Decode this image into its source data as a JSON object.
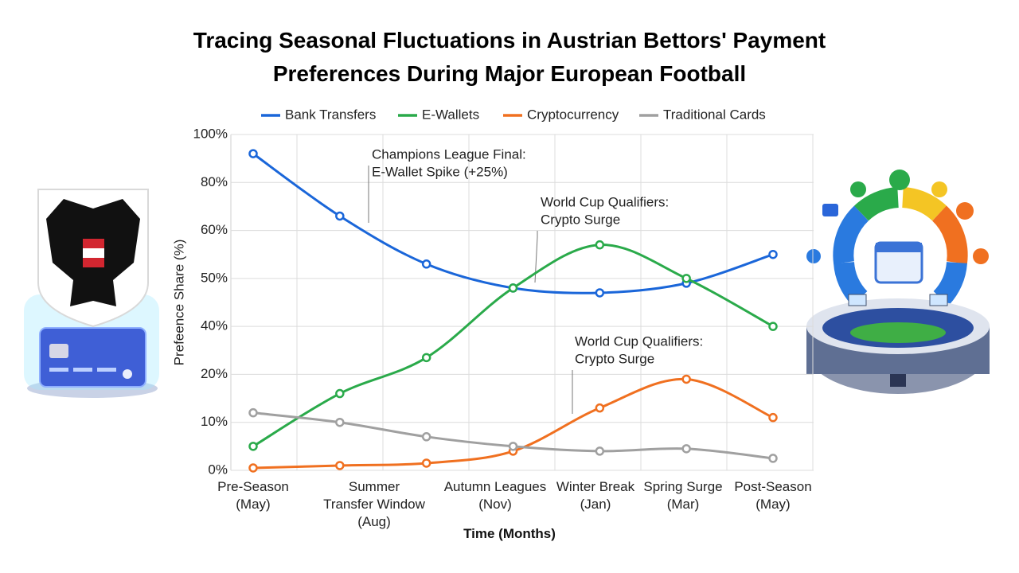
{
  "chart_data": {
    "type": "line",
    "title": "Tracing Seasonal Fluctuations in Austrian Bettors' Payment Preferences During Major European Football",
    "x_label": "Time (Months)",
    "y_label": "Prefeence Share (%)",
    "categories": [
      "Pre-Season (May)",
      "Summer Transfer Window (Aug)",
      null,
      "Autumn Leagues (Nov)",
      "Winter Break (Jan)",
      "Spring Surge (Mar)",
      "Post-Season (May)"
    ],
    "series": [
      {
        "name": "Bank Transfers",
        "color": "#1a66d9",
        "values": [
          92,
          66,
          53,
          48,
          47,
          49,
          55
        ]
      },
      {
        "name": "E-Wallets",
        "color": "#2aaa4a",
        "values": [
          5,
          16,
          27,
          48,
          57,
          50,
          40
        ]
      },
      {
        "name": "Cryptocurrency",
        "color": "#f07020",
        "values": [
          0.5,
          1,
          1.5,
          4,
          13,
          19,
          11
        ]
      },
      {
        "name": "Traditional Cards",
        "color": "#a0a0a0",
        "values": [
          12,
          10,
          7,
          5,
          4,
          4.5,
          2.5
        ]
      }
    ],
    "ylim": [
      0,
      100
    ],
    "yticks": [
      {
        "value": 0,
        "label": "0%"
      },
      {
        "value": 10,
        "label": "10%"
      },
      {
        "value": 20,
        "label": "20%"
      },
      {
        "value": 40,
        "label": "40%"
      },
      {
        "value": 50,
        "label": "50%"
      },
      {
        "value": 60,
        "label": "60%"
      },
      {
        "value": 80,
        "label": "80%"
      },
      {
        "value": 100,
        "label": "100%"
      }
    ],
    "grid": true,
    "legend": "top",
    "annotations": [
      {
        "lines": [
          "Champions League Final:",
          "E-Wallet Spike (+25%)"
        ]
      },
      {
        "lines": [
          "World Cup Qualifiers:",
          "Crypto Surge"
        ]
      },
      {
        "lines": [
          "World Cup Qualifiers:",
          "Crypto Surge"
        ]
      }
    ]
  }
}
